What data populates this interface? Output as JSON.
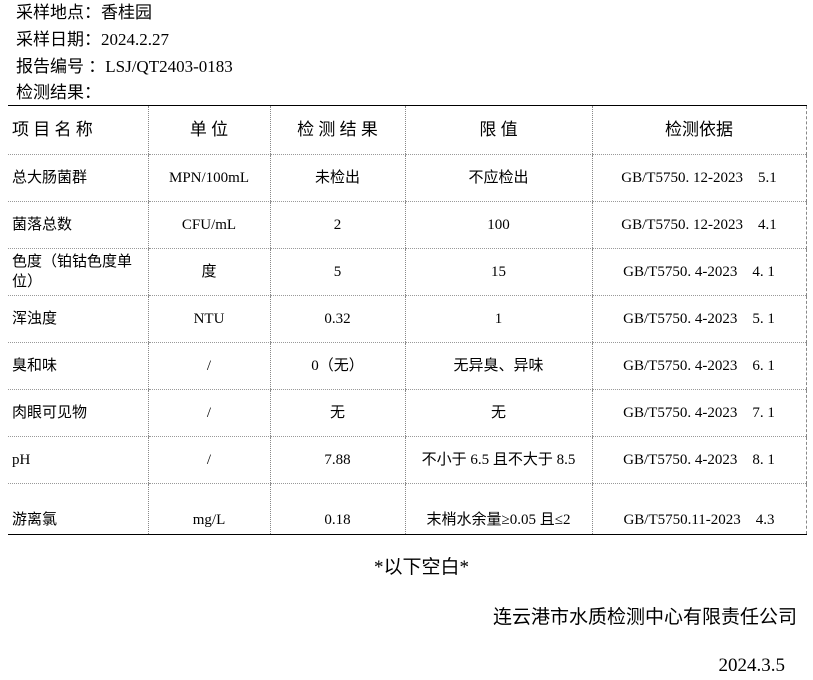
{
  "header": {
    "site": "采样地点：香桂园",
    "date": "采样日期：2024.2.27",
    "report_no": "报告编号 ：LSJ/QT2403-0183",
    "results_label": "检测结果："
  },
  "table": {
    "columns": [
      "项 目 名 称",
      "单 位",
      "检 测 结 果",
      "限 值",
      "检测依据"
    ],
    "rows": [
      [
        "总大肠菌群",
        "MPN/100mL",
        "未检出",
        "不应检出",
        "GB/T5750. 12-2023    5.1"
      ],
      [
        "菌落总数",
        "CFU/mL",
        "2",
        "100",
        "GB/T5750. 12-2023    4.1"
      ],
      [
        "色度（铂钴色度单位）",
        "度",
        "5",
        "15",
        "GB/T5750. 4-2023    4. 1"
      ],
      [
        "浑浊度",
        "NTU",
        "0.32",
        "1",
        "GB/T5750. 4-2023    5. 1"
      ],
      [
        "臭和味",
        "/",
        "0（无）",
        "无异臭、异味",
        "GB/T5750. 4-2023    6. 1"
      ],
      [
        "肉眼可见物",
        "/",
        "无",
        "无",
        "GB/T5750. 4-2023    7. 1"
      ],
      [
        "pH",
        "/",
        "7.88",
        "不小于 6.5 且不大于 8.5",
        "GB/T5750. 4-2023    8. 1"
      ],
      [
        "游离氯",
        "mg/L",
        "0.18",
        "末梢水余量≥0.05 且≤2",
        "GB/T5750.11-2023    4.3"
      ]
    ]
  },
  "footer": {
    "blank_note": "*以下空白*",
    "organization": "连云港市水质检测中心有限责任公司",
    "date": "2024.3.5"
  }
}
